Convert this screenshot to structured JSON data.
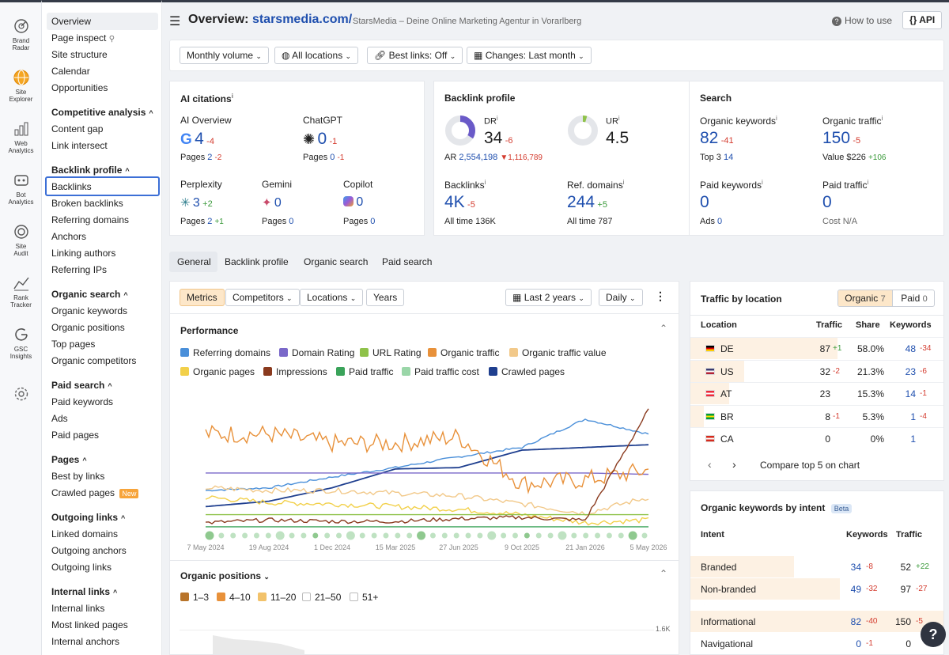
{
  "rail": [
    {
      "label1": "Brand",
      "label2": "Radar"
    },
    {
      "label1": "Site",
      "label2": "Explorer"
    },
    {
      "label1": "Web",
      "label2": "Analytics"
    },
    {
      "label1": "Bot",
      "label2": "Analytics"
    },
    {
      "label1": "Site",
      "label2": "Audit"
    },
    {
      "label1": "Rank",
      "label2": "Tracker"
    },
    {
      "label1": "GSC",
      "label2": "Insights"
    }
  ],
  "menu": {
    "top": [
      "Overview",
      "Page inspect",
      "Site structure",
      "Calendar",
      "Opportunities"
    ],
    "competitive": {
      "title": "Competitive analysis",
      "items": [
        "Content gap",
        "Link intersect"
      ]
    },
    "backlink": {
      "title": "Backlink profile",
      "items": [
        "Backlinks",
        "Broken backlinks",
        "Referring domains",
        "Anchors",
        "Linking authors",
        "Referring IPs"
      ]
    },
    "organic": {
      "title": "Organic search",
      "items": [
        "Organic keywords",
        "Organic positions",
        "Top pages",
        "Organic competitors"
      ]
    },
    "paid": {
      "title": "Paid search",
      "items": [
        "Paid keywords",
        "Ads",
        "Paid pages"
      ]
    },
    "pages": {
      "title": "Pages",
      "items": [
        "Best by links",
        "Crawled pages"
      ],
      "new_badge": "New"
    },
    "outgoing": {
      "title": "Outgoing links",
      "items": [
        "Linked domains",
        "Outgoing anchors",
        "Outgoing links"
      ]
    },
    "internal": {
      "title": "Internal links",
      "items": [
        "Internal links",
        "Most linked pages",
        "Internal anchors"
      ]
    }
  },
  "header": {
    "prefix": "Overview: ",
    "domain": "starsmedia.com/",
    "subtitle": "StarsMedia – Deine Online Marketing Agentur in Vorarlberg",
    "how_to_use": "How to use",
    "api": "API"
  },
  "filters": [
    "Monthly volume",
    "All locations",
    "Best links: Off",
    "Changes: Last month"
  ],
  "ai": {
    "title": "AI citations",
    "overview": {
      "label": "AI Overview",
      "value": "4",
      "delta": "-4",
      "pages_label": "Pages",
      "pages": "2",
      "pages_delta": "-2"
    },
    "chatgpt": {
      "label": "ChatGPT",
      "value": "0",
      "delta": "-1",
      "pages_label": "Pages",
      "pages": "0",
      "pages_delta": "-1"
    },
    "perplexity": {
      "label": "Perplexity",
      "value": "3",
      "delta": "+2",
      "pages_label": "Pages",
      "pages": "2",
      "pages_delta": "+1"
    },
    "gemini": {
      "label": "Gemini",
      "value": "0",
      "pages_label": "Pages",
      "pages": "0"
    },
    "copilot": {
      "label": "Copilot",
      "value": "0",
      "pages_label": "Pages",
      "pages": "0"
    }
  },
  "backlink": {
    "title": "Backlink profile",
    "dr_label": "DR",
    "dr": "34",
    "dr_delta": "-6",
    "ur_label": "UR",
    "ur": "4.5",
    "ar_label": "AR",
    "ar": "2,554,198",
    "ar_delta": "▼1,116,789",
    "backlinks_label": "Backlinks",
    "backlinks": "4K",
    "backlinks_delta": "-5",
    "backlinks_all_label": "All time",
    "backlinks_all": "136K",
    "refdomains_label": "Ref. domains",
    "refdomains": "244",
    "refdomains_delta": "+5",
    "refdomains_all_label": "All time",
    "refdomains_all": "787"
  },
  "search": {
    "title": "Search",
    "org_kw_label": "Organic keywords",
    "org_kw": "82",
    "org_kw_delta": "-41",
    "top3_label": "Top 3",
    "top3": "14",
    "org_tr_label": "Organic traffic",
    "org_tr": "150",
    "org_tr_delta": "-5",
    "value_label": "Value",
    "value": "$226",
    "value_delta": "+106",
    "paid_kw_label": "Paid keywords",
    "paid_kw": "0",
    "ads_label": "Ads",
    "ads": "0",
    "paid_tr_label": "Paid traffic",
    "paid_tr": "0",
    "cost_label": "Cost",
    "cost": "N/A"
  },
  "tabs": [
    "General",
    "Backlink profile",
    "Organic search",
    "Paid search"
  ],
  "chart_controls": {
    "metrics": "Metrics",
    "competitors": "Competitors",
    "locations": "Locations",
    "years": "Years",
    "range": "Last 2 years",
    "interval": "Daily"
  },
  "performance": {
    "title": "Performance",
    "legend": [
      {
        "name": "Referring domains",
        "color": "#4a8fd9"
      },
      {
        "name": "Domain Rating",
        "color": "#7a68c9"
      },
      {
        "name": "URL Rating",
        "color": "#8fc24a"
      },
      {
        "name": "Organic traffic",
        "color": "#e8913a"
      },
      {
        "name": "Organic traffic value",
        "color": "#f2c98a"
      },
      {
        "name": "Organic pages",
        "color": "#f2d04a"
      },
      {
        "name": "Impressions",
        "color": "#8a3a1e"
      },
      {
        "name": "Paid traffic",
        "color": "#3aa35a"
      },
      {
        "name": "Paid traffic cost",
        "color": "#9ad6a8"
      },
      {
        "name": "Crawled pages",
        "color": "#1f3f8f"
      }
    ],
    "x_ticks": [
      "7 May 2024",
      "19 Aug 2024",
      "1 Dec 2024",
      "15 Mar 2025",
      "27 Jun 2025",
      "9 Oct 2025",
      "21 Jan 2026",
      "5 May 2026"
    ]
  },
  "chart_data": {
    "type": "line",
    "x": [
      "7 May 2024",
      "19 Aug 2024",
      "1 Dec 2024",
      "15 Mar 2025",
      "27 Jun 2025",
      "9 Oct 2025",
      "21 Jan 2026",
      "5 May 2026"
    ],
    "series": [
      {
        "name": "Referring domains",
        "values": [
          0.3,
          0.32,
          0.4,
          0.47,
          0.55,
          0.62,
          0.83,
          0.72
        ]
      },
      {
        "name": "Crawled pages",
        "values": [
          0.18,
          0.22,
          0.32,
          0.46,
          0.47,
          0.6,
          0.62,
          0.64
        ]
      },
      {
        "name": "Domain Rating",
        "values": [
          0.43,
          0.43,
          0.43,
          0.43,
          0.43,
          0.43,
          0.43,
          0.42
        ]
      },
      {
        "name": "Organic traffic",
        "values": [
          0.72,
          0.72,
          0.65,
          0.65,
          0.7,
          0.35,
          0.38,
          0.45
        ]
      },
      {
        "name": "Organic pages",
        "values": [
          0.25,
          0.21,
          0.2,
          0.18,
          0.16,
          0.12,
          0.06,
          0.08
        ]
      },
      {
        "name": "Organic traffic value",
        "values": [
          0.32,
          0.3,
          0.3,
          0.28,
          0.26,
          0.2,
          0.13,
          0.25
        ]
      },
      {
        "name": "URL Rating",
        "values": [
          0.12,
          0.12,
          0.12,
          0.12,
          0.12,
          0.12,
          0.12,
          0.12
        ]
      },
      {
        "name": "Impressions",
        "values": [
          0.06,
          0.08,
          0.07,
          0.07,
          0.09,
          0.1,
          0.08,
          0.9
        ]
      },
      {
        "name": "Paid traffic",
        "values": [
          0.03,
          0.03,
          0.03,
          0.03,
          0.03,
          0.03,
          0.03,
          0.03
        ]
      }
    ]
  },
  "positions": {
    "title": "Organic positions",
    "legend": [
      {
        "name": "1–3",
        "color": "#b8742a"
      },
      {
        "name": "4–10",
        "color": "#e8913a"
      },
      {
        "name": "11–20",
        "color": "#f2c26a"
      },
      {
        "name": "21–50",
        "color": "#cfcfcf"
      },
      {
        "name": "51+",
        "color": "#dedede"
      }
    ],
    "ymax": "1.6K"
  },
  "traffic_location": {
    "title": "Traffic by location",
    "organic_tab": "Organic",
    "organic_count": "7",
    "paid_tab": "Paid",
    "paid_count": "0",
    "headers": [
      "Location",
      "Traffic",
      "Share",
      "Keywords"
    ],
    "rows": [
      {
        "code": "DE",
        "traffic": "87",
        "delta": "+1",
        "share": "58.0%",
        "kw": "48",
        "kw_delta": "-34",
        "bar": 0.58
      },
      {
        "code": "US",
        "traffic": "32",
        "delta": "-2",
        "share": "21.3%",
        "kw": "23",
        "kw_delta": "-6",
        "bar": 0.213
      },
      {
        "code": "AT",
        "traffic": "23",
        "delta": "",
        "share": "15.3%",
        "kw": "14",
        "kw_delta": "-1",
        "bar": 0.153
      },
      {
        "code": "BR",
        "traffic": "8",
        "delta": "-1",
        "share": "5.3%",
        "kw": "1",
        "kw_delta": "-4",
        "bar": 0.053
      },
      {
        "code": "CA",
        "traffic": "0",
        "delta": "",
        "share": "0%",
        "kw": "1",
        "kw_delta": "",
        "bar": 0
      }
    ],
    "compare": "Compare top 5 on chart"
  },
  "intent": {
    "title": "Organic keywords by intent",
    "beta": "Beta",
    "headers": [
      "Intent",
      "Keywords",
      "Traffic"
    ],
    "rows": [
      {
        "name": "Branded",
        "kw": "34",
        "kw_delta": "-8",
        "tr": "52",
        "tr_delta": "+22",
        "bar": 0.41
      },
      {
        "name": "Non-branded",
        "kw": "49",
        "kw_delta": "-32",
        "tr": "97",
        "tr_delta": "-27",
        "bar": 0.59
      },
      {
        "name": "Informational",
        "kw": "82",
        "kw_delta": "-40",
        "tr": "150",
        "tr_delta": "-5",
        "bar": 1.0
      },
      {
        "name": "Navigational",
        "kw": "0",
        "kw_delta": "-1",
        "tr": "0",
        "tr_delta": "",
        "bar": 0
      }
    ]
  },
  "help": "?"
}
